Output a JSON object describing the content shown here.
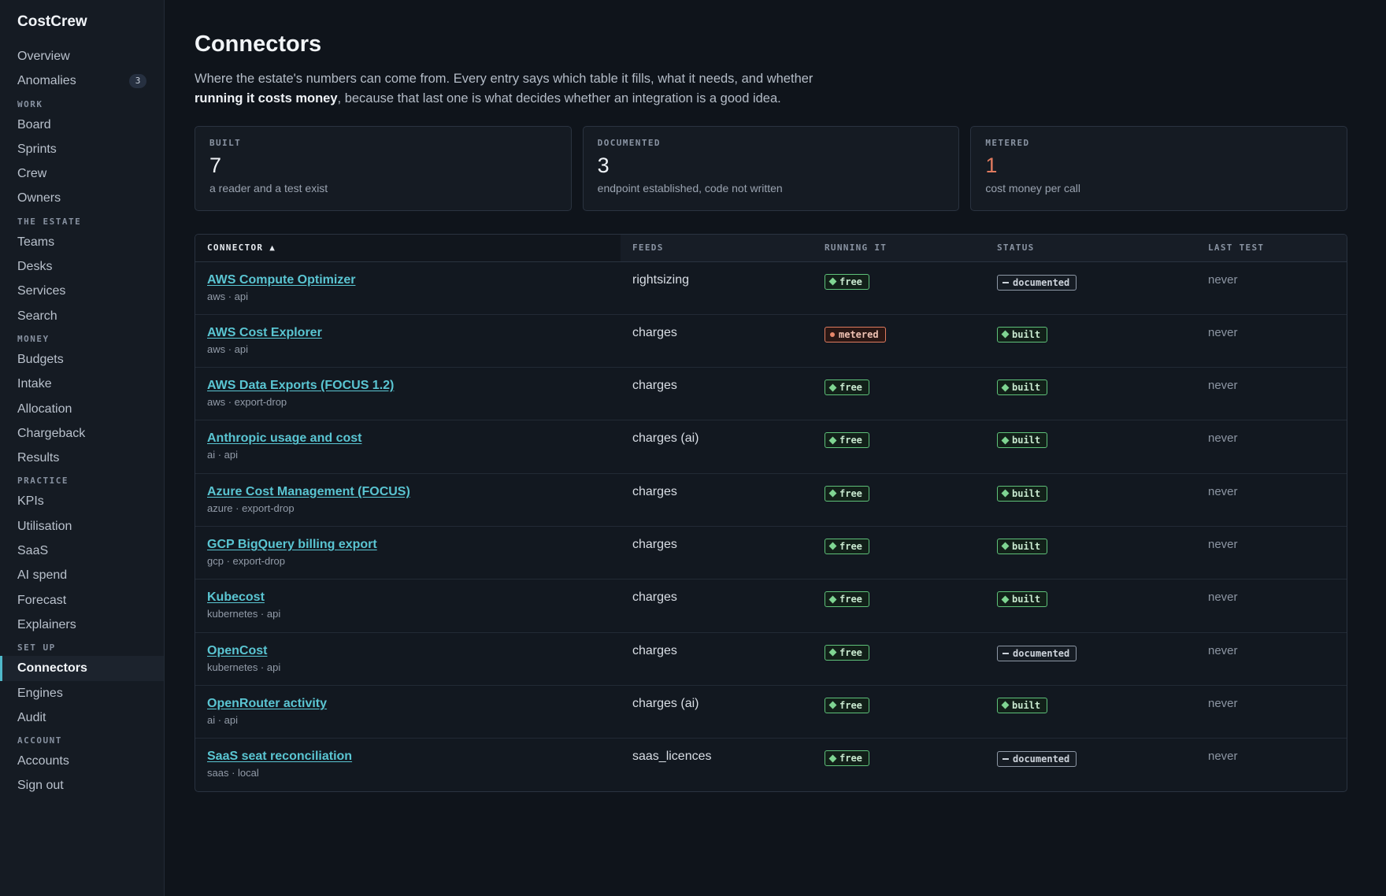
{
  "app": {
    "name": "CostCrew"
  },
  "sidebar": {
    "top": [
      {
        "label": "Overview"
      },
      {
        "label": "Anomalies",
        "badge": "3"
      }
    ],
    "sections": [
      {
        "title": "WORK",
        "items": [
          "Board",
          "Sprints",
          "Crew",
          "Owners"
        ]
      },
      {
        "title": "THE ESTATE",
        "items": [
          "Teams",
          "Desks",
          "Services",
          "Search"
        ]
      },
      {
        "title": "MONEY",
        "items": [
          "Budgets",
          "Intake",
          "Allocation",
          "Chargeback",
          "Results"
        ]
      },
      {
        "title": "PRACTICE",
        "items": [
          "KPIs",
          "Utilisation",
          "SaaS",
          "AI spend",
          "Forecast",
          "Explainers"
        ]
      },
      {
        "title": "SET UP",
        "items": [
          "Connectors",
          "Engines",
          "Audit"
        ]
      },
      {
        "title": "ACCOUNT",
        "items": [
          "Accounts",
          "Sign out"
        ]
      }
    ],
    "active": "Connectors"
  },
  "page": {
    "title": "Connectors",
    "intro_before": "Where the estate's numbers can come from. Every entry says which table it fills, what it needs, and whether ",
    "intro_bold": "running it costs money",
    "intro_after": ", because that last one is what decides whether an integration is a good idea."
  },
  "stats": [
    {
      "label": "BUILT",
      "value": "7",
      "sub": "a reader and a test exist",
      "tone": "normal"
    },
    {
      "label": "DOCUMENTED",
      "value": "3",
      "sub": "endpoint established, code not written",
      "tone": "normal"
    },
    {
      "label": "METERED",
      "value": "1",
      "sub": "cost money per call",
      "tone": "warn"
    }
  ],
  "table": {
    "columns": {
      "connector": "CONNECTOR ▲",
      "feeds": "FEEDS",
      "running": "RUNNING IT",
      "status": "STATUS",
      "last_test": "LAST TEST"
    },
    "rows": [
      {
        "name": "AWS Compute Optimizer",
        "meta": "aws · api",
        "feeds": "rightsizing",
        "running": "free",
        "status": "documented",
        "last_test": "never"
      },
      {
        "name": "AWS Cost Explorer",
        "meta": "aws · api",
        "feeds": "charges",
        "running": "metered",
        "status": "built",
        "last_test": "never"
      },
      {
        "name": "AWS Data Exports (FOCUS 1.2)",
        "meta": "aws · export-drop",
        "feeds": "charges",
        "running": "free",
        "status": "built",
        "last_test": "never"
      },
      {
        "name": "Anthropic usage and cost",
        "meta": "ai · api",
        "feeds": "charges (ai)",
        "running": "free",
        "status": "built",
        "last_test": "never"
      },
      {
        "name": "Azure Cost Management (FOCUS)",
        "meta": "azure · export-drop",
        "feeds": "charges",
        "running": "free",
        "status": "built",
        "last_test": "never"
      },
      {
        "name": "GCP BigQuery billing export",
        "meta": "gcp · export-drop",
        "feeds": "charges",
        "running": "free",
        "status": "built",
        "last_test": "never"
      },
      {
        "name": "Kubecost",
        "meta": "kubernetes · api",
        "feeds": "charges",
        "running": "free",
        "status": "built",
        "last_test": "never"
      },
      {
        "name": "OpenCost",
        "meta": "kubernetes · api",
        "feeds": "charges",
        "running": "free",
        "status": "documented",
        "last_test": "never"
      },
      {
        "name": "OpenRouter activity",
        "meta": "ai · api",
        "feeds": "charges (ai)",
        "running": "free",
        "status": "built",
        "last_test": "never"
      },
      {
        "name": "SaaS seat reconciliation",
        "meta": "saas · local",
        "feeds": "saas_licences",
        "running": "free",
        "status": "documented",
        "last_test": "never"
      }
    ]
  }
}
